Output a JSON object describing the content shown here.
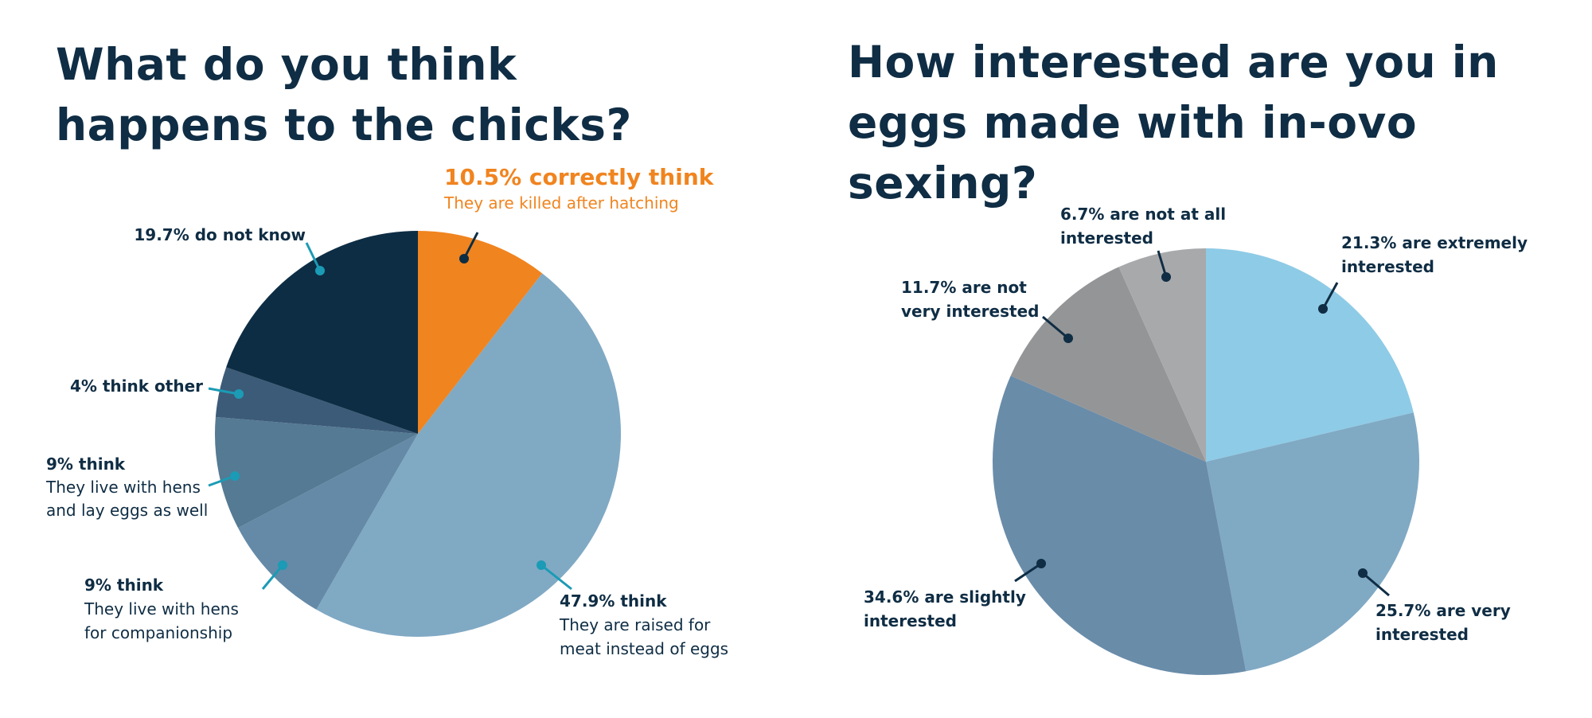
{
  "chart_data": [
    {
      "type": "pie",
      "title": "What do you think happens to the chicks?",
      "slices": [
        {
          "lines": [
            "10.5% correctly think",
            "They are killed after hatching"
          ],
          "value": 10.5,
          "color": "#f0841f"
        },
        {
          "lines": [
            "47.9% think",
            "They are raised for",
            "meat instead of eggs"
          ],
          "value": 47.9,
          "color": "#80a9c4"
        },
        {
          "lines": [
            "9% think",
            "They live with hens",
            "for companionship"
          ],
          "value": 9,
          "color": "#648aa7"
        },
        {
          "lines": [
            "9% think",
            "They live with hens",
            "and lay eggs as well"
          ],
          "value": 9,
          "color": "#557a93"
        },
        {
          "lines": [
            "4% think other"
          ],
          "value": 4,
          "color": "#3c5b78"
        },
        {
          "lines": [
            "19.7% do not know"
          ],
          "value": 19.7,
          "color": "#0d2d44"
        }
      ]
    },
    {
      "type": "pie",
      "title": "How interested are you in eggs made with in-ovo sexing?",
      "slices": [
        {
          "lines": [
            "21.3% are extremely",
            "interested"
          ],
          "value": 21.3,
          "color": "#8ecbe6"
        },
        {
          "lines": [
            "25.7% are very",
            "interested"
          ],
          "value": 25.7,
          "color": "#80a9c4"
        },
        {
          "lines": [
            "34.6% are slightly",
            "interested"
          ],
          "value": 34.6,
          "color": "#698ca9"
        },
        {
          "lines": [
            "11.7% are not",
            "very interested"
          ],
          "value": 11.7,
          "color": "#949596"
        },
        {
          "lines": [
            "6.7% are not at all",
            "interested"
          ],
          "value": 6.7,
          "color": "#a8a9ab"
        }
      ]
    }
  ]
}
